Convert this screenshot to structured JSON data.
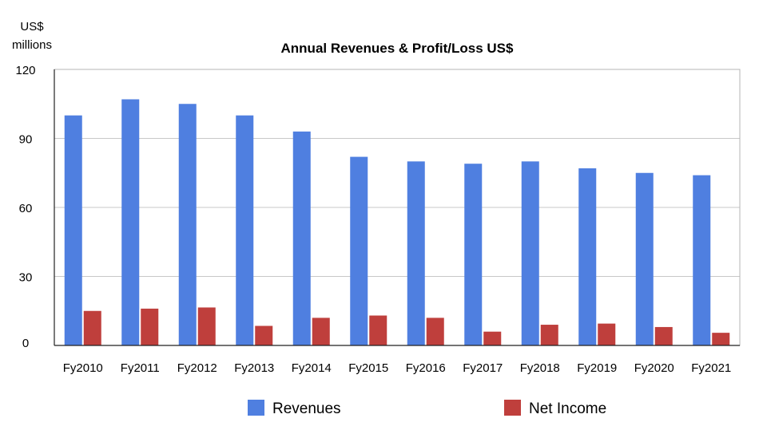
{
  "chart_data": {
    "type": "bar",
    "title": "Annual Revenues & Profit/Loss US$",
    "y_unit_line1": "US$",
    "y_unit_line2": "millions",
    "xlabel": "",
    "ylabel": "",
    "ylim": [
      0,
      120
    ],
    "y_ticks": [
      0,
      30,
      60,
      90,
      120
    ],
    "grid": true,
    "legend_position": "bottom",
    "categories": [
      "Fy2010",
      "Fy2011",
      "Fy2012",
      "Fy2013",
      "Fy2014",
      "Fy2015",
      "Fy2016",
      "Fy2017",
      "Fy2018",
      "Fy2019",
      "Fy2020",
      "Fy2021"
    ],
    "series": [
      {
        "name": "Revenues",
        "color": "#4f7fe0",
        "values": [
          100,
          107,
          105,
          100,
          93,
          82,
          80,
          79,
          80,
          77,
          75,
          74
        ]
      },
      {
        "name": "Net Income",
        "color": "#bf3f3c",
        "values": [
          15,
          16,
          16.5,
          8.5,
          12,
          13,
          12,
          6,
          9,
          9.5,
          8,
          5.5
        ]
      }
    ]
  }
}
